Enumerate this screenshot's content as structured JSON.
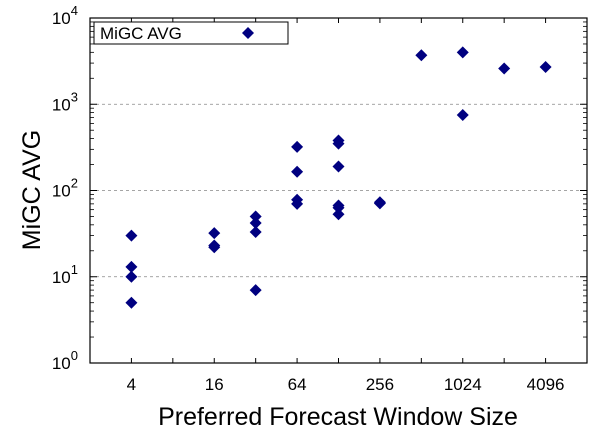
{
  "chart_data": {
    "type": "scatter",
    "xlabel": "Preferred Forecast Window Size",
    "ylabel": "MiGC AVG",
    "x_scale": "log2",
    "y_scale": "log10",
    "xlim": [
      2,
      8192
    ],
    "ylim": [
      1,
      10000
    ],
    "x_ticks": [
      {
        "value": 4,
        "label": "4"
      },
      {
        "value": 16,
        "label": "16"
      },
      {
        "value": 64,
        "label": "64"
      },
      {
        "value": 256,
        "label": "256"
      },
      {
        "value": 1024,
        "label": "1024"
      },
      {
        "value": 4096,
        "label": "4096"
      }
    ],
    "y_ticks": [
      {
        "value": 1,
        "base": "10",
        "exp": "0"
      },
      {
        "value": 10,
        "base": "10",
        "exp": "1"
      },
      {
        "value": 100,
        "base": "10",
        "exp": "2"
      },
      {
        "value": 1000,
        "base": "10",
        "exp": "3"
      },
      {
        "value": 10000,
        "base": "10",
        "exp": "4"
      }
    ],
    "grid": "horizontal dashed at major y ticks",
    "legend": {
      "position": "top-left",
      "label": "MiGC AVG"
    },
    "marker_color": "#000080",
    "series": [
      {
        "name": "MiGC AVG",
        "marker": "diamond",
        "points": [
          {
            "x": 4,
            "y": 30
          },
          {
            "x": 4,
            "y": 13
          },
          {
            "x": 4,
            "y": 10
          },
          {
            "x": 4,
            "y": 5
          },
          {
            "x": 16,
            "y": 32
          },
          {
            "x": 16,
            "y": 23
          },
          {
            "x": 16,
            "y": 22
          },
          {
            "x": 32,
            "y": 50
          },
          {
            "x": 32,
            "y": 42
          },
          {
            "x": 32,
            "y": 33
          },
          {
            "x": 32,
            "y": 7
          },
          {
            "x": 64,
            "y": 320
          },
          {
            "x": 64,
            "y": 165
          },
          {
            "x": 64,
            "y": 78
          },
          {
            "x": 64,
            "y": 70
          },
          {
            "x": 128,
            "y": 380
          },
          {
            "x": 128,
            "y": 350
          },
          {
            "x": 128,
            "y": 190
          },
          {
            "x": 128,
            "y": 67
          },
          {
            "x": 128,
            "y": 63
          },
          {
            "x": 128,
            "y": 53
          },
          {
            "x": 256,
            "y": 73
          },
          {
            "x": 256,
            "y": 71
          },
          {
            "x": 512,
            "y": 3700
          },
          {
            "x": 1024,
            "y": 4000
          },
          {
            "x": 1024,
            "y": 750
          },
          {
            "x": 2048,
            "y": 2600
          },
          {
            "x": 4096,
            "y": 2700
          }
        ]
      }
    ]
  }
}
